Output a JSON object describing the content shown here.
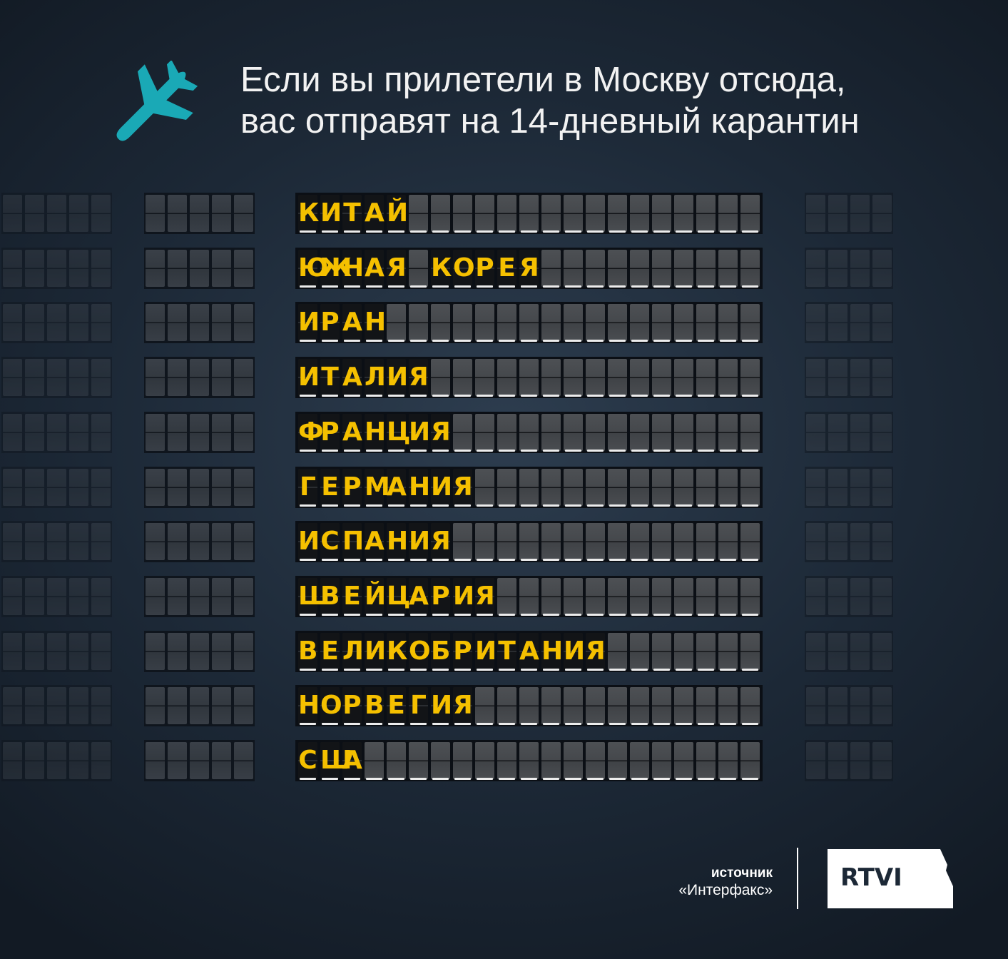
{
  "header": {
    "title_line1": "Если вы прилетели в Москву отсюда,",
    "title_line2": "вас отправят на 14-дневный карантин",
    "icon": "airplane-icon",
    "icon_color": "#1aa9b6"
  },
  "board": {
    "letter_color": "#f5c000",
    "rows": [
      {
        "name": "КИТАЙ",
        "cells": [
          "К",
          "И",
          "Т",
          "А",
          "Й"
        ]
      },
      {
        "name": "ЮЖНАЯ КОРЕЯ",
        "cells": [
          "Ю",
          "Ж",
          "Н",
          "А",
          "Я",
          " ",
          "К",
          "О",
          "Р",
          "Е",
          "Я"
        ]
      },
      {
        "name": "ИРАН",
        "cells": [
          "И",
          "Р",
          "А",
          "Н"
        ]
      },
      {
        "name": "ИТАЛИЯ",
        "cells": [
          "И",
          "Т",
          "А",
          "Л",
          "И",
          "Я"
        ]
      },
      {
        "name": "ФРАНЦИЯ",
        "cells": [
          "Ф",
          "Р",
          "А",
          "Н",
          "Ц",
          "И",
          "Я"
        ]
      },
      {
        "name": "ГЕРМАНИЯ",
        "cells": [
          "Г",
          "Е",
          "Р",
          "М",
          "А",
          "Н",
          "И",
          "Я"
        ]
      },
      {
        "name": "ИСПАНИЯ",
        "cells": [
          "И",
          "С",
          "П",
          "А",
          "Н",
          "И",
          "Я"
        ]
      },
      {
        "name": "ШВЕЙЦАРИЯ",
        "cells": [
          "Ш",
          "В",
          "Е",
          "Й",
          "Ц",
          "А",
          "Р",
          "И",
          "Я"
        ]
      },
      {
        "name": "ВЕЛИКОБРИТАНИЯ",
        "cells": [
          "В",
          "Е",
          "Л",
          "И",
          "К",
          "О",
          "Б",
          "Р",
          "И",
          "Т",
          "А",
          "Н",
          "И",
          "Я"
        ]
      },
      {
        "name": "НОРВЕГИЯ",
        "cells": [
          "Н",
          "О",
          "Р",
          "В",
          "Е",
          "Г",
          "И",
          "Я"
        ]
      },
      {
        "name": "США",
        "cells": [
          "С",
          "Ш",
          "А"
        ]
      }
    ]
  },
  "footer": {
    "source_label": "источник",
    "source_name": "«Интерфакс»",
    "logo_text": "RTVI"
  }
}
